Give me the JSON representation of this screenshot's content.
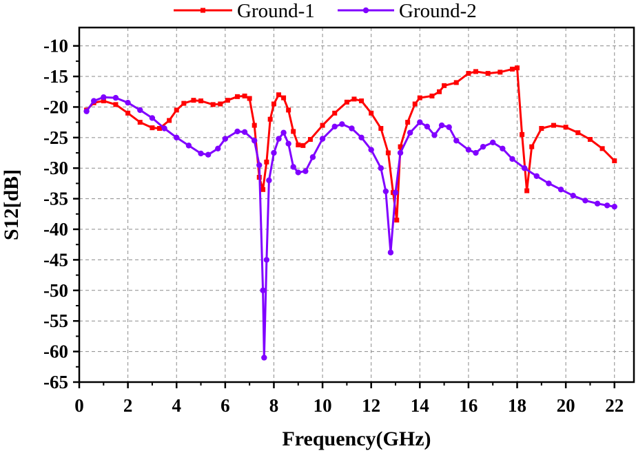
{
  "chart_data": {
    "type": "line",
    "title": "",
    "xlabel": "Frequency(GHz)",
    "ylabel": "S12[dB]",
    "xlim": [
      0,
      22.8
    ],
    "ylim": [
      -65,
      -7
    ],
    "xticks": [
      0,
      2,
      4,
      6,
      8,
      10,
      12,
      14,
      16,
      18,
      20,
      22
    ],
    "xtick_labels": [
      "0",
      "2",
      "4",
      "6",
      "8",
      "10",
      "12",
      "14",
      "16",
      "18",
      "20",
      "22"
    ],
    "yticks": [
      -10,
      -15,
      -20,
      -25,
      -30,
      -35,
      -40,
      -45,
      -50,
      -55,
      -60,
      -65
    ],
    "ytick_labels": [
      "-10",
      "-15",
      "-20",
      "-25",
      "-30",
      "-35",
      "-40",
      "-45",
      "-50",
      "-55",
      "-60",
      "-65"
    ],
    "grid": true,
    "legend_position": "top",
    "series": [
      {
        "name": "Ground-1",
        "color": "#ff0000",
        "marker": "square",
        "points": [
          [
            0.3,
            -20.5
          ],
          [
            0.6,
            -19.3
          ],
          [
            1.0,
            -19.0
          ],
          [
            1.5,
            -19.6
          ],
          [
            2.0,
            -21.0
          ],
          [
            2.5,
            -22.5
          ],
          [
            3.0,
            -23.4
          ],
          [
            3.3,
            -23.5
          ],
          [
            3.7,
            -22.2
          ],
          [
            4.0,
            -20.5
          ],
          [
            4.3,
            -19.4
          ],
          [
            4.7,
            -18.9
          ],
          [
            5.0,
            -19.0
          ],
          [
            5.5,
            -19.6
          ],
          [
            5.8,
            -19.5
          ],
          [
            6.1,
            -18.9
          ],
          [
            6.5,
            -18.3
          ],
          [
            6.8,
            -18.2
          ],
          [
            7.0,
            -18.6
          ],
          [
            7.2,
            -23.0
          ],
          [
            7.4,
            -31.5
          ],
          [
            7.55,
            -33.5
          ],
          [
            7.7,
            -29.0
          ],
          [
            7.85,
            -22.0
          ],
          [
            8.0,
            -19.5
          ],
          [
            8.2,
            -18.0
          ],
          [
            8.4,
            -18.5
          ],
          [
            8.6,
            -20.5
          ],
          [
            8.8,
            -24.0
          ],
          [
            9.0,
            -26.2
          ],
          [
            9.2,
            -26.3
          ],
          [
            9.5,
            -25.3
          ],
          [
            10.0,
            -23.0
          ],
          [
            10.5,
            -21.0
          ],
          [
            11.0,
            -19.2
          ],
          [
            11.3,
            -18.7
          ],
          [
            11.6,
            -19.0
          ],
          [
            12.0,
            -21.0
          ],
          [
            12.4,
            -23.5
          ],
          [
            12.7,
            -27.5
          ],
          [
            12.9,
            -34.0
          ],
          [
            13.05,
            -38.5
          ],
          [
            13.2,
            -26.5
          ],
          [
            13.5,
            -22.5
          ],
          [
            13.8,
            -19.5
          ],
          [
            14.0,
            -18.5
          ],
          [
            14.5,
            -18.2
          ],
          [
            14.8,
            -17.5
          ],
          [
            15.0,
            -16.5
          ],
          [
            15.5,
            -16.0
          ],
          [
            16.0,
            -14.5
          ],
          [
            16.3,
            -14.2
          ],
          [
            16.8,
            -14.5
          ],
          [
            17.3,
            -14.3
          ],
          [
            17.8,
            -13.8
          ],
          [
            18.0,
            -13.6
          ],
          [
            18.2,
            -24.5
          ],
          [
            18.4,
            -33.7
          ],
          [
            18.6,
            -26.5
          ],
          [
            19.0,
            -23.5
          ],
          [
            19.5,
            -23.0
          ],
          [
            20.0,
            -23.3
          ],
          [
            20.5,
            -24.2
          ],
          [
            21.0,
            -25.3
          ],
          [
            21.5,
            -26.8
          ],
          [
            22.0,
            -28.8
          ]
        ]
      },
      {
        "name": "Ground-2",
        "color": "#8000ff",
        "marker": "circle",
        "points": [
          [
            0.3,
            -20.7
          ],
          [
            0.6,
            -19.0
          ],
          [
            1.0,
            -18.4
          ],
          [
            1.5,
            -18.5
          ],
          [
            2.0,
            -19.3
          ],
          [
            2.5,
            -20.5
          ],
          [
            3.0,
            -21.8
          ],
          [
            3.5,
            -23.5
          ],
          [
            4.0,
            -25.0
          ],
          [
            4.5,
            -26.3
          ],
          [
            5.0,
            -27.6
          ],
          [
            5.3,
            -27.8
          ],
          [
            5.7,
            -26.8
          ],
          [
            6.0,
            -25.2
          ],
          [
            6.5,
            -24.0
          ],
          [
            6.8,
            -24.1
          ],
          [
            7.2,
            -25.5
          ],
          [
            7.4,
            -29.5
          ],
          [
            7.55,
            -50.0
          ],
          [
            7.6,
            -61.0
          ],
          [
            7.7,
            -45.0
          ],
          [
            7.8,
            -32.0
          ],
          [
            8.0,
            -27.5
          ],
          [
            8.2,
            -25.2
          ],
          [
            8.4,
            -24.2
          ],
          [
            8.6,
            -26.0
          ],
          [
            8.8,
            -29.8
          ],
          [
            9.0,
            -30.7
          ],
          [
            9.3,
            -30.5
          ],
          [
            9.6,
            -28.2
          ],
          [
            10.0,
            -25.2
          ],
          [
            10.5,
            -23.2
          ],
          [
            10.8,
            -22.8
          ],
          [
            11.2,
            -23.5
          ],
          [
            11.6,
            -25.0
          ],
          [
            12.0,
            -27.0
          ],
          [
            12.4,
            -30.0
          ],
          [
            12.6,
            -33.8
          ],
          [
            12.8,
            -43.8
          ],
          [
            13.0,
            -34.0
          ],
          [
            13.2,
            -27.5
          ],
          [
            13.6,
            -24.2
          ],
          [
            14.0,
            -22.5
          ],
          [
            14.3,
            -23.2
          ],
          [
            14.6,
            -24.6
          ],
          [
            14.9,
            -23.0
          ],
          [
            15.2,
            -23.3
          ],
          [
            15.5,
            -25.5
          ],
          [
            16.0,
            -27.0
          ],
          [
            16.3,
            -27.5
          ],
          [
            16.6,
            -26.5
          ],
          [
            17.0,
            -25.8
          ],
          [
            17.4,
            -26.8
          ],
          [
            17.8,
            -28.5
          ],
          [
            18.3,
            -30.0
          ],
          [
            18.8,
            -31.3
          ],
          [
            19.3,
            -32.5
          ],
          [
            19.8,
            -33.5
          ],
          [
            20.3,
            -34.5
          ],
          [
            20.8,
            -35.3
          ],
          [
            21.3,
            -35.8
          ],
          [
            21.7,
            -36.1
          ],
          [
            22.0,
            -36.3
          ]
        ]
      }
    ]
  }
}
